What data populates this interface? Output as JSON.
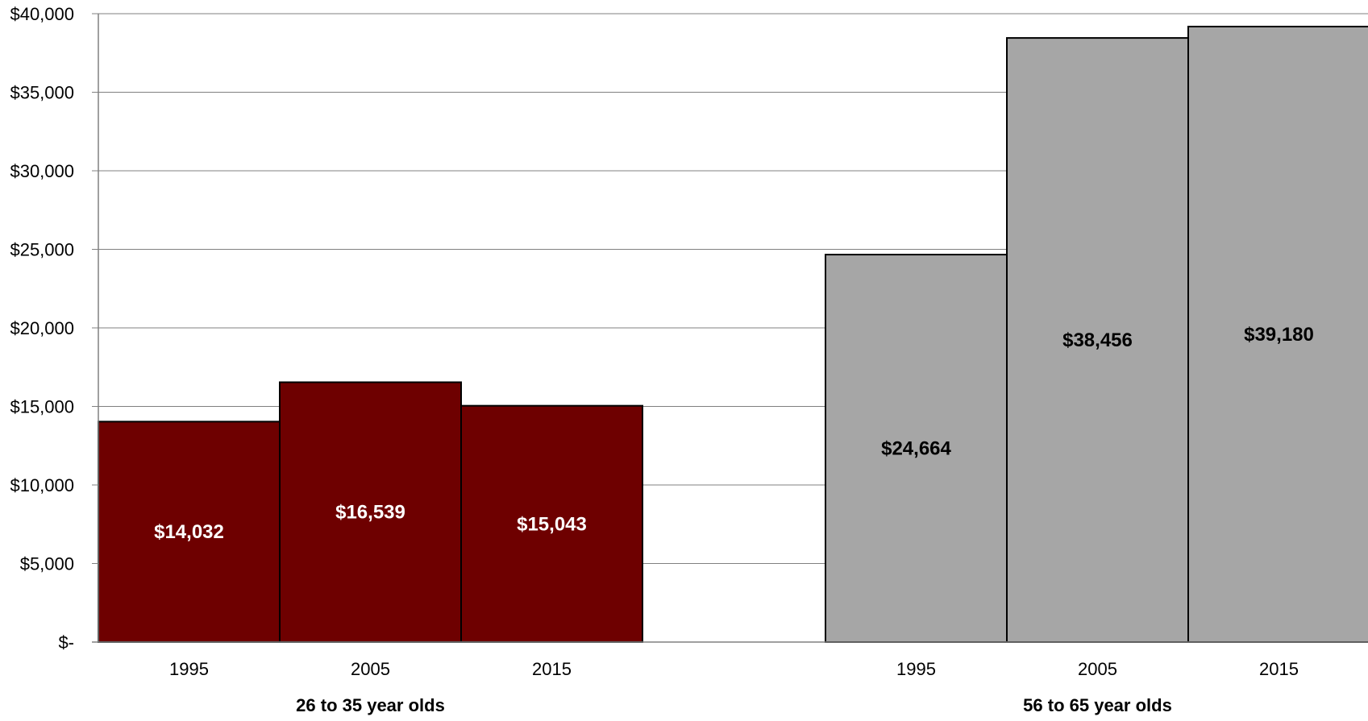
{
  "chart_data": {
    "type": "bar",
    "title": "",
    "xlabel": "",
    "ylabel": "",
    "ylim": [
      0,
      40000
    ],
    "y_ticks": [
      0,
      5000,
      10000,
      15000,
      20000,
      25000,
      30000,
      35000,
      40000
    ],
    "y_tick_labels": [
      "$-",
      "$5,000",
      "$10,000",
      "$15,000",
      "$20,000",
      "$25,000",
      "$30,000",
      "$35,000",
      "$40,000"
    ],
    "grid": true,
    "legend": "none",
    "groups": [
      {
        "label": "26 to 35 year olds",
        "color": "#6e0000",
        "label_color": "#ffffff",
        "categories": [
          "1995",
          "2005",
          "2015"
        ],
        "values": [
          14032,
          16539,
          15043
        ],
        "data_labels": [
          "$14,032",
          "$16,539",
          "$15,043"
        ]
      },
      {
        "label": "56 to 65 year olds",
        "color": "#a6a6a6",
        "label_color": "#000000",
        "categories": [
          "1995",
          "2005",
          "2015"
        ],
        "values": [
          24664,
          38456,
          39180
        ],
        "data_labels": [
          "$24,664",
          "$38,456",
          "$39,180"
        ]
      }
    ]
  }
}
